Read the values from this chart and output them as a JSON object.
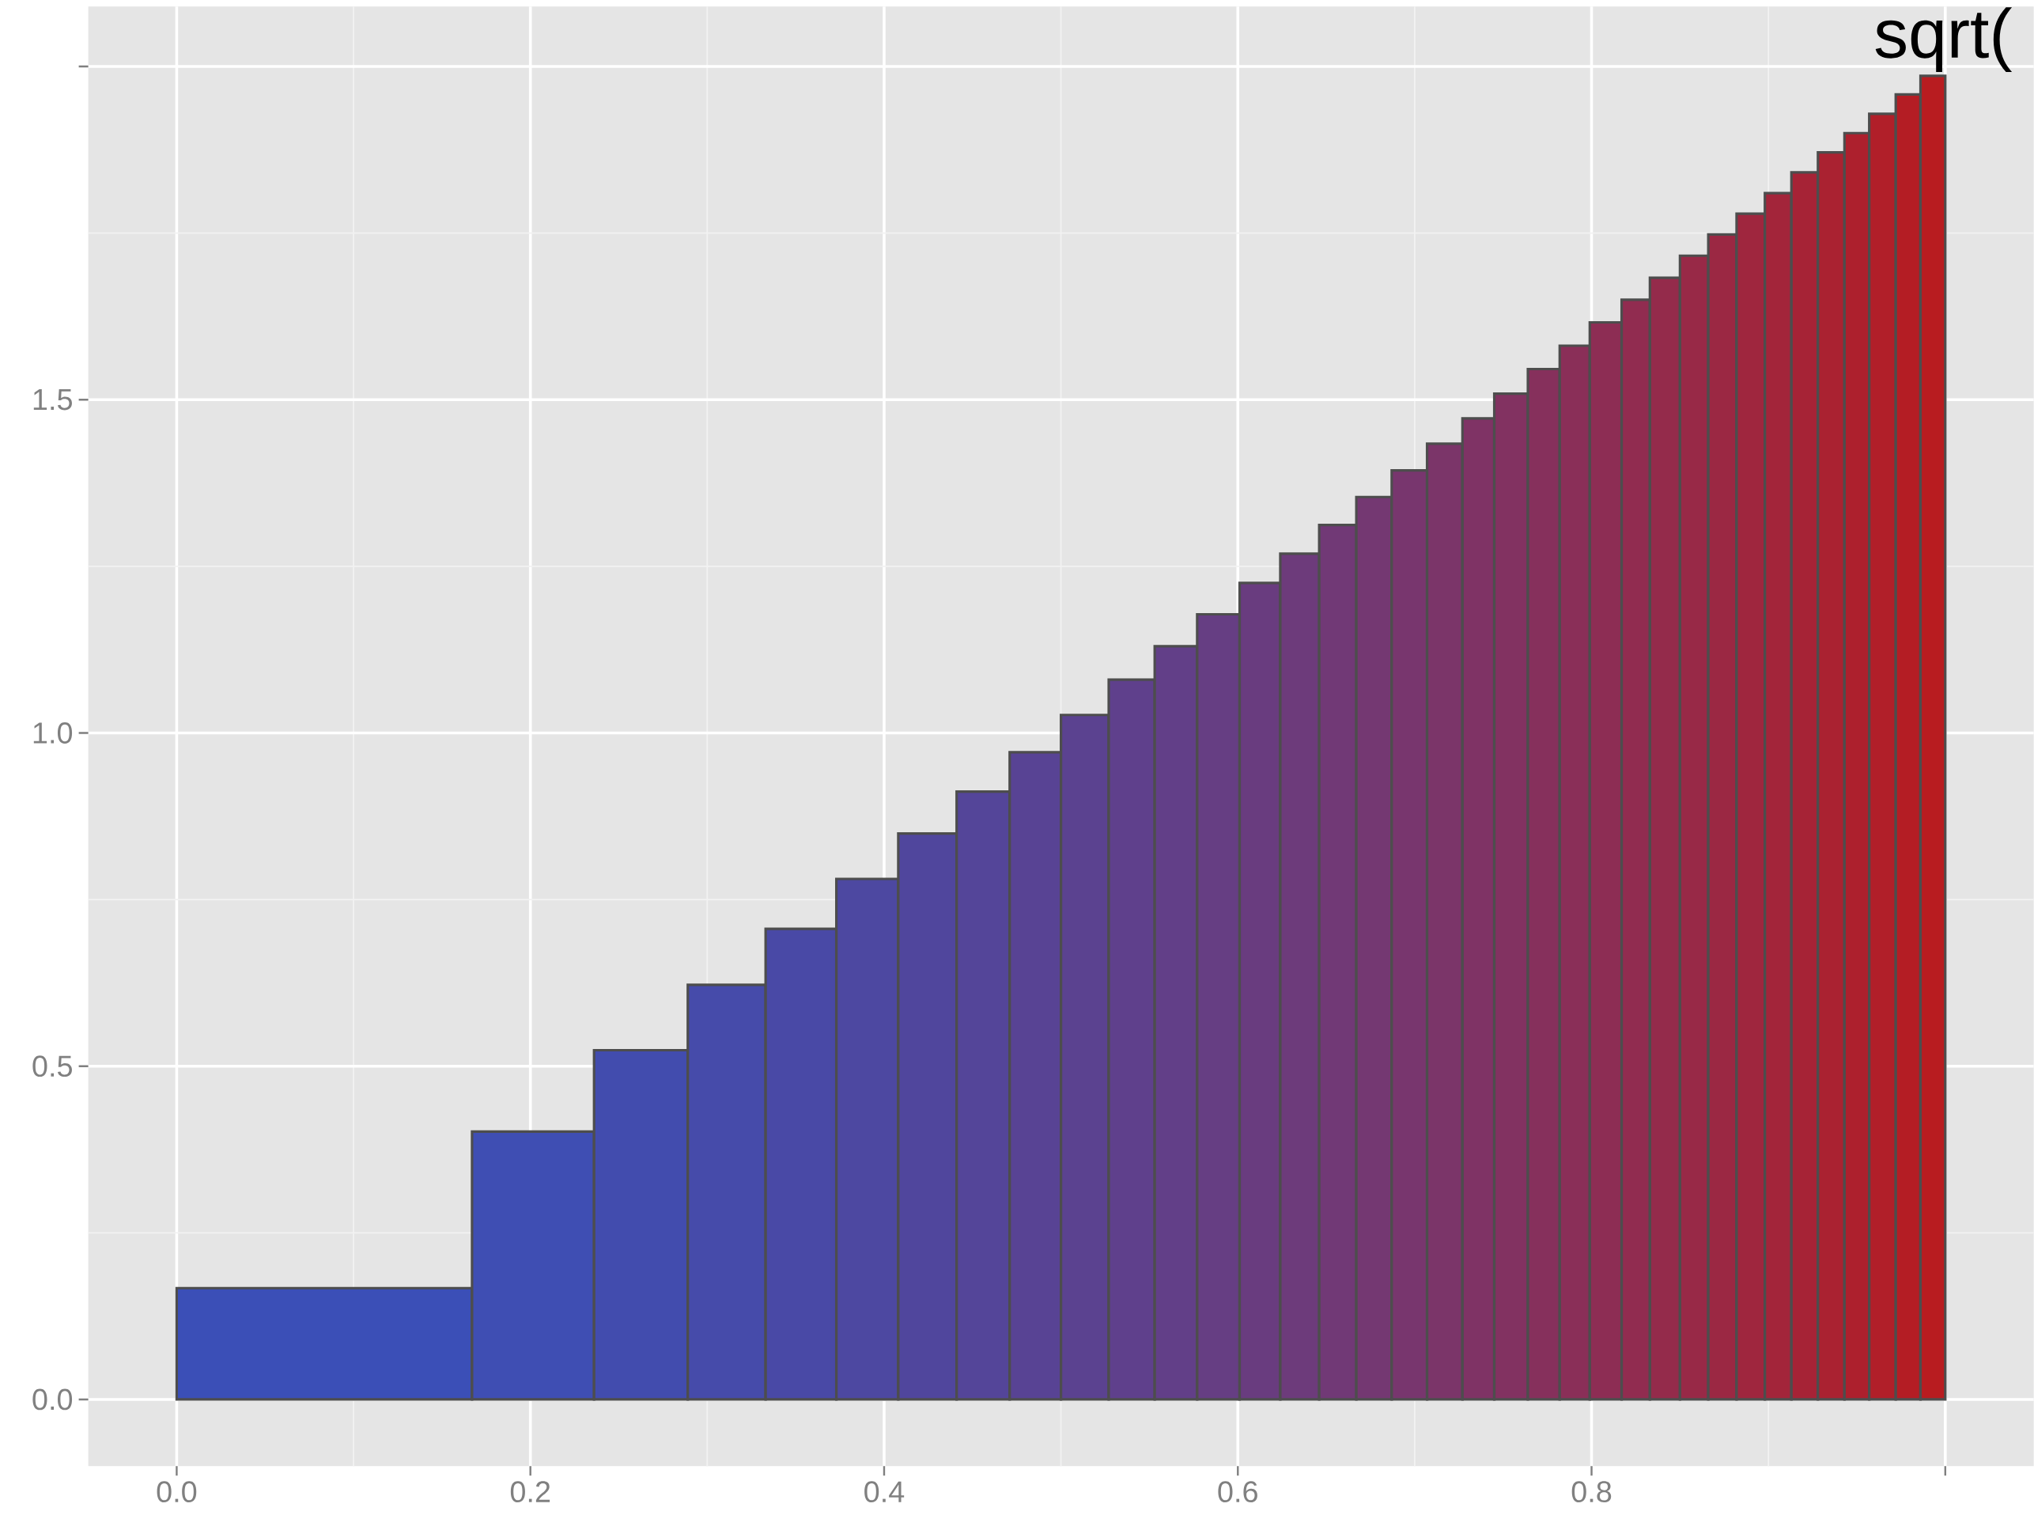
{
  "chart_data": {
    "type": "histogram",
    "title": "sqrt(",
    "bins": [
      0,
      0.167,
      0.236,
      0.289,
      0.333,
      0.373,
      0.408,
      0.441,
      0.471,
      0.5,
      0.527,
      0.553,
      0.577,
      0.601,
      0.624,
      0.646,
      0.667,
      0.687,
      0.707,
      0.727,
      0.745,
      0.764,
      0.782,
      0.799,
      0.817,
      0.833,
      0.85,
      0.866,
      0.882,
      0.898,
      0.913,
      0.928,
      0.943,
      0.957,
      0.972,
      0.986,
      1
    ],
    "values": [
      0.167,
      0.402,
      0.524,
      0.622,
      0.706,
      0.781,
      0.849,
      0.912,
      0.971,
      1.027,
      1.08,
      1.13,
      1.178,
      1.225,
      1.269,
      1.312,
      1.354,
      1.394,
      1.434,
      1.472,
      1.509,
      1.546,
      1.581,
      1.616,
      1.65,
      1.683,
      1.716,
      1.748,
      1.779,
      1.81,
      1.841,
      1.871,
      1.9,
      1.929,
      1.958,
      1.986
    ],
    "colors": [
      "#3b4fb7",
      "#3f4eb3",
      "#424cae",
      "#464baa",
      "#4949a6",
      "#4d48a1",
      "#50469d",
      "#544599",
      "#584394",
      "#5b4290",
      "#5f408c",
      "#623f88",
      "#663e83",
      "#693c7f",
      "#6d3b7b",
      "#713976",
      "#743872",
      "#78366e",
      "#7b3569",
      "#7f3365",
      "#823261",
      "#86305c",
      "#8a2f58",
      "#8d2d54",
      "#912c50",
      "#942b4b",
      "#982947",
      "#9b2843",
      "#9f263e",
      "#a3253a",
      "#a62336",
      "#aa2231",
      "#ad202d",
      "#b11f29",
      "#b41d24",
      "#b81c20"
    ],
    "xlim": [
      -0.05,
      1.05
    ],
    "ylim": [
      -0.1,
      2.09
    ],
    "xticks": [
      {
        "value": 0,
        "label": "0.0"
      },
      0.2,
      0.4,
      0.6,
      0.8,
      {
        "value": 1,
        "label": null
      }
    ],
    "yticks": [
      {
        "value": 0,
        "label": "0.0"
      },
      0.5,
      {
        "value": 1,
        "label": "1.0"
      },
      1.5,
      {
        "value": 2,
        "label": null
      }
    ],
    "grid": true
  }
}
